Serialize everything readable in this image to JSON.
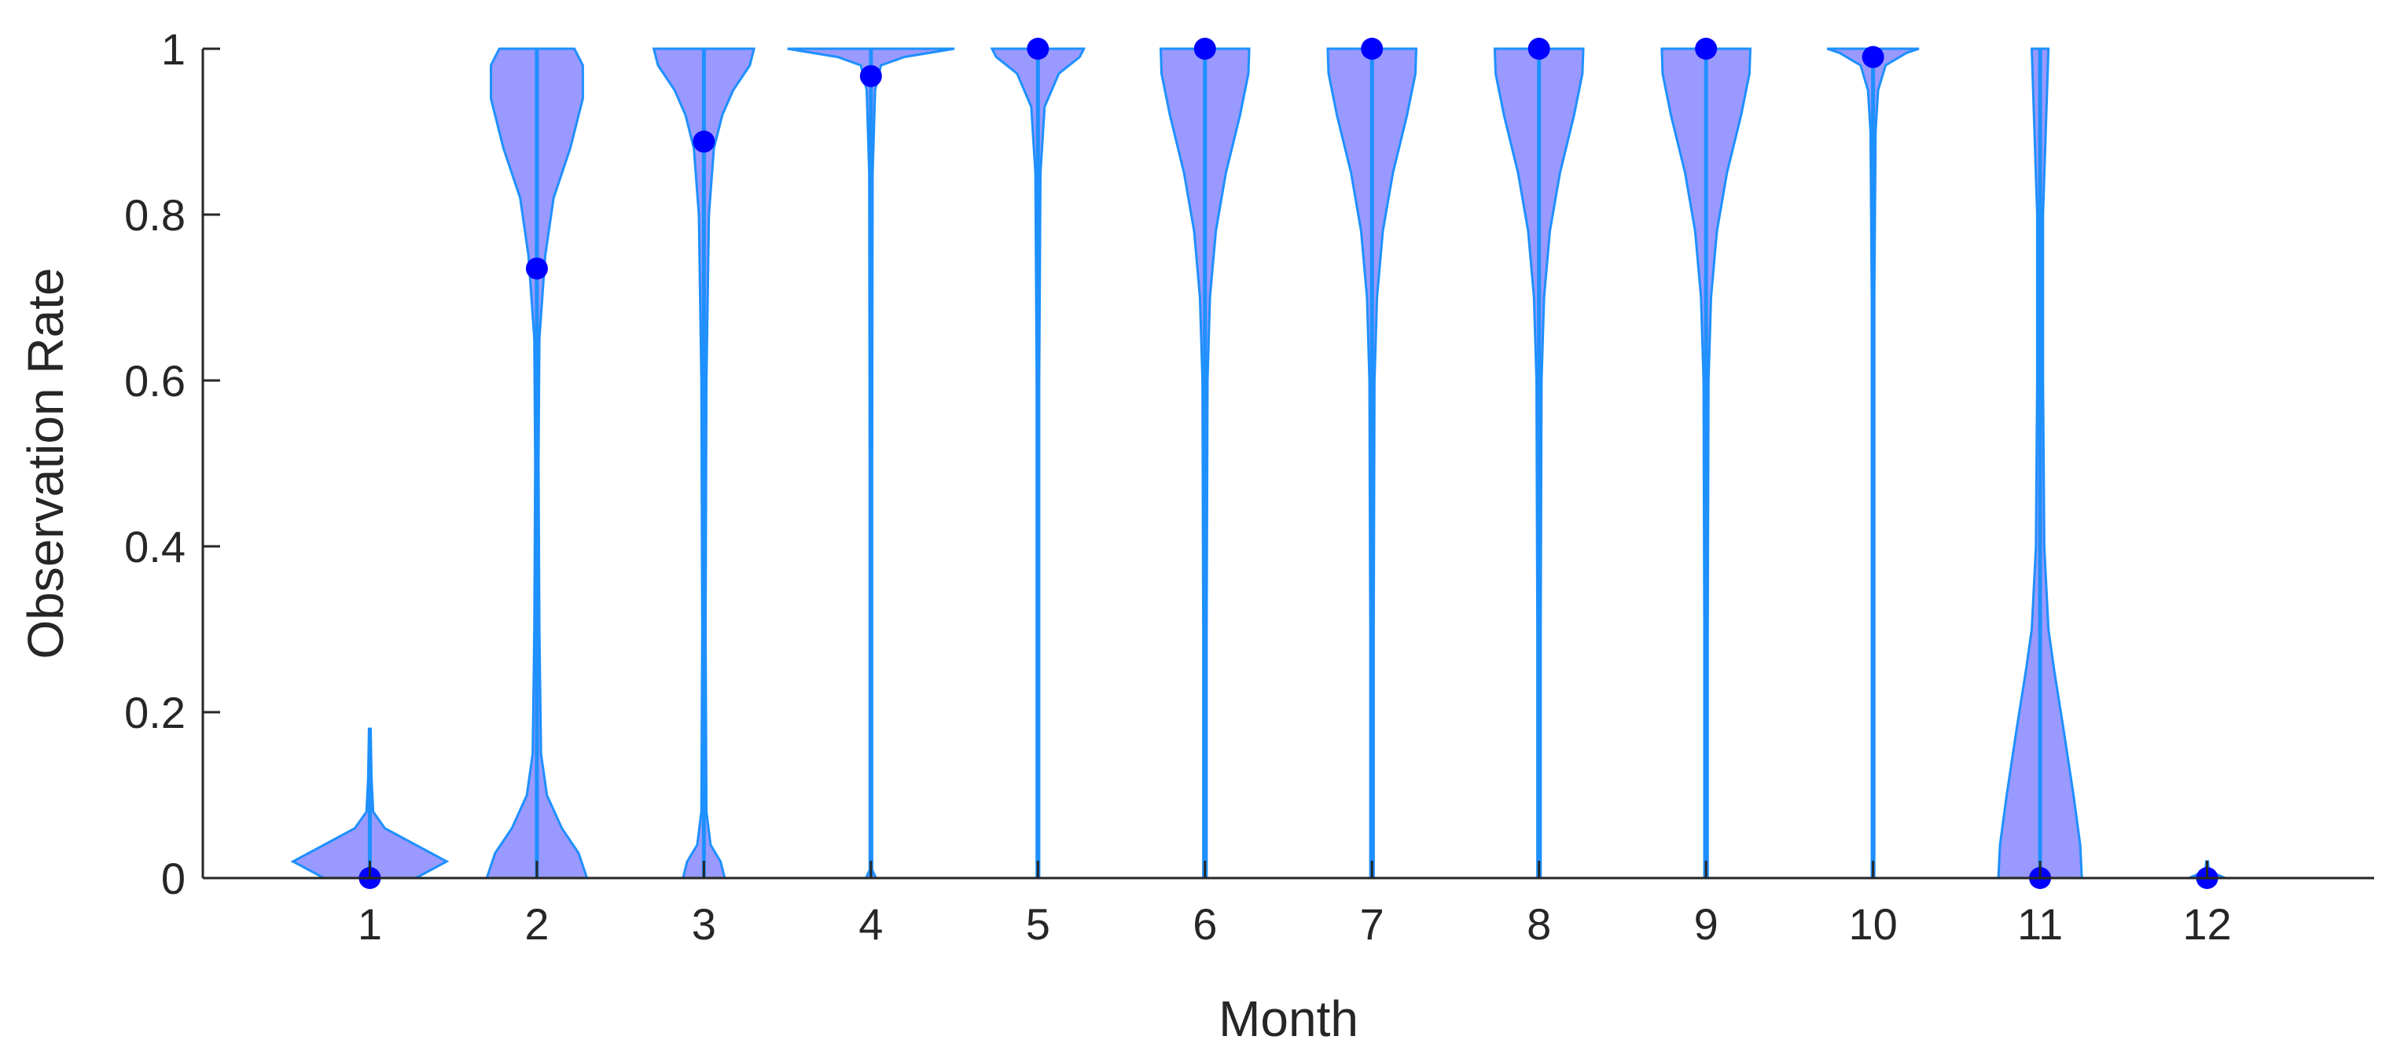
{
  "chart_data": {
    "type": "violin",
    "title": "",
    "xlabel": "Month",
    "ylabel": "Observation Rate",
    "categories": [
      "1",
      "2",
      "3",
      "4",
      "5",
      "6",
      "7",
      "8",
      "9",
      "10",
      "11",
      "12"
    ],
    "x_ticks": [
      "1",
      "2",
      "3",
      "4",
      "5",
      "6",
      "7",
      "8",
      "9",
      "10",
      "11",
      "12"
    ],
    "y_ticks": [
      "0",
      "0.2",
      "0.4",
      "0.6",
      "0.8",
      "1"
    ],
    "ylim": [
      0,
      1
    ],
    "xlim": [
      0,
      13
    ],
    "grid": false,
    "legend": "none",
    "colors": {
      "fill": "#9999ff",
      "edge": "#1e90ff",
      "median": "#0000ff",
      "axis": "#262626"
    },
    "medians": [
      0.0,
      0.735,
      0.888,
      0.967,
      1.0,
      1.0,
      1.0,
      1.0,
      1.0,
      0.99,
      0.0,
      0.0
    ],
    "ranges": [
      [
        0,
        0.18
      ],
      [
        0,
        1
      ],
      [
        0,
        1
      ],
      [
        0,
        1
      ],
      [
        0,
        1
      ],
      [
        0,
        1
      ],
      [
        0,
        1
      ],
      [
        0,
        1
      ],
      [
        0,
        1
      ],
      [
        0,
        1
      ],
      [
        0,
        1
      ],
      [
        0,
        0.02
      ]
    ],
    "density_profiles": [
      [
        [
          0,
          0.55
        ],
        [
          0.02,
          0.92
        ],
        [
          0.04,
          0.55
        ],
        [
          0.06,
          0.18
        ],
        [
          0.08,
          0.04
        ],
        [
          0.12,
          0.02
        ],
        [
          0.18,
          0.01
        ]
      ],
      [
        [
          0,
          0.6
        ],
        [
          0.03,
          0.5
        ],
        [
          0.06,
          0.3
        ],
        [
          0.1,
          0.12
        ],
        [
          0.15,
          0.05
        ],
        [
          0.3,
          0.03
        ],
        [
          0.5,
          0.02
        ],
        [
          0.65,
          0.03
        ],
        [
          0.75,
          0.1
        ],
        [
          0.82,
          0.2
        ],
        [
          0.88,
          0.4
        ],
        [
          0.94,
          0.55
        ],
        [
          0.98,
          0.55
        ],
        [
          1.0,
          0.45
        ]
      ],
      [
        [
          0,
          0.25
        ],
        [
          0.02,
          0.2
        ],
        [
          0.04,
          0.08
        ],
        [
          0.08,
          0.03
        ],
        [
          0.3,
          0.02
        ],
        [
          0.6,
          0.03
        ],
        [
          0.8,
          0.06
        ],
        [
          0.88,
          0.12
        ],
        [
          0.92,
          0.22
        ],
        [
          0.95,
          0.35
        ],
        [
          0.98,
          0.55
        ],
        [
          1.0,
          0.6
        ]
      ],
      [
        [
          0,
          0.06
        ],
        [
          0.01,
          0.015
        ],
        [
          0.5,
          0.015
        ],
        [
          0.85,
          0.02
        ],
        [
          0.95,
          0.05
        ],
        [
          0.98,
          0.12
        ],
        [
          0.99,
          0.4
        ],
        [
          1.0,
          1.0
        ]
      ],
      [
        [
          0,
          0.015
        ],
        [
          0.6,
          0.015
        ],
        [
          0.85,
          0.03
        ],
        [
          0.93,
          0.08
        ],
        [
          0.97,
          0.25
        ],
        [
          0.99,
          0.5
        ],
        [
          1.0,
          0.55
        ]
      ],
      [
        [
          0,
          0.02
        ],
        [
          0.3,
          0.02
        ],
        [
          0.6,
          0.03
        ],
        [
          0.7,
          0.06
        ],
        [
          0.78,
          0.13
        ],
        [
          0.85,
          0.25
        ],
        [
          0.92,
          0.42
        ],
        [
          0.97,
          0.52
        ],
        [
          1.0,
          0.53
        ]
      ],
      [
        [
          0,
          0.02
        ],
        [
          0.3,
          0.02
        ],
        [
          0.6,
          0.03
        ],
        [
          0.7,
          0.06
        ],
        [
          0.78,
          0.13
        ],
        [
          0.85,
          0.25
        ],
        [
          0.92,
          0.42
        ],
        [
          0.97,
          0.52
        ],
        [
          1.0,
          0.53
        ]
      ],
      [
        [
          0,
          0.02
        ],
        [
          0.3,
          0.02
        ],
        [
          0.6,
          0.03
        ],
        [
          0.7,
          0.06
        ],
        [
          0.78,
          0.13
        ],
        [
          0.85,
          0.25
        ],
        [
          0.92,
          0.42
        ],
        [
          0.97,
          0.52
        ],
        [
          1.0,
          0.53
        ]
      ],
      [
        [
          0,
          0.02
        ],
        [
          0.3,
          0.02
        ],
        [
          0.6,
          0.03
        ],
        [
          0.7,
          0.06
        ],
        [
          0.78,
          0.13
        ],
        [
          0.85,
          0.25
        ],
        [
          0.92,
          0.42
        ],
        [
          0.97,
          0.52
        ],
        [
          1.0,
          0.53
        ]
      ],
      [
        [
          0,
          0.015
        ],
        [
          0.7,
          0.015
        ],
        [
          0.9,
          0.03
        ],
        [
          0.95,
          0.06
        ],
        [
          0.98,
          0.15
        ],
        [
          0.995,
          0.4
        ],
        [
          1.0,
          0.55
        ]
      ],
      [
        [
          0,
          0.5
        ],
        [
          0.04,
          0.48
        ],
        [
          0.1,
          0.4
        ],
        [
          0.18,
          0.28
        ],
        [
          0.25,
          0.17
        ],
        [
          0.3,
          0.1
        ],
        [
          0.4,
          0.05
        ],
        [
          0.6,
          0.035
        ],
        [
          0.8,
          0.035
        ],
        [
          1.0,
          0.1
        ]
      ],
      [
        [
          0,
          0.22
        ],
        [
          0.005,
          0.1
        ],
        [
          0.01,
          0.02
        ],
        [
          0.02,
          0.01
        ]
      ]
    ]
  }
}
